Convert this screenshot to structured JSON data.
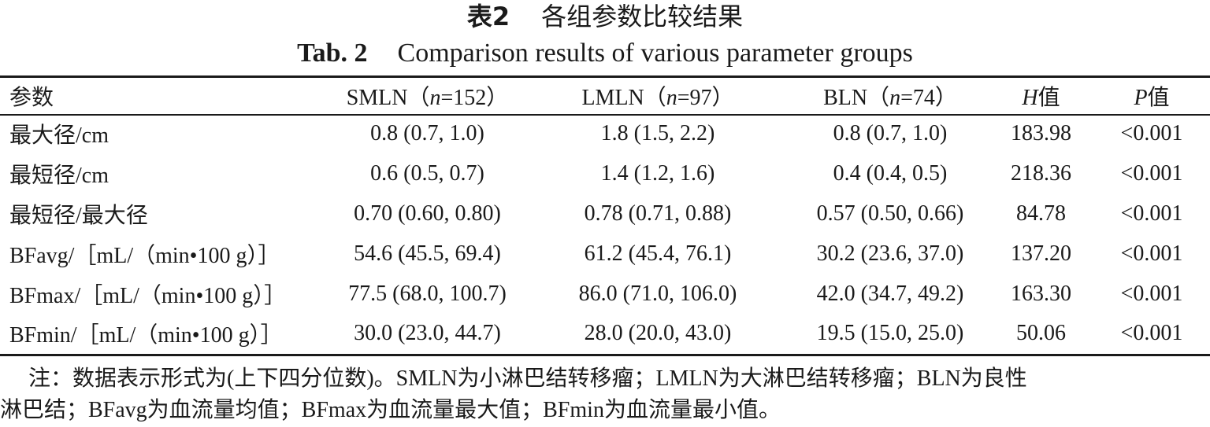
{
  "caption": {
    "cn_prefix": "表2",
    "cn_title": "各组参数比较结果",
    "en_prefix": "Tab. 2",
    "en_title": "Comparison results of various parameter groups"
  },
  "table": {
    "headers": {
      "param": "参数",
      "g1_name": "SMLN（",
      "g1_n": "n",
      "g1_count": "=152）",
      "g2_name": "LMLN（",
      "g2_n": "n",
      "g2_count": "=97）",
      "g3_name": "BLN（",
      "g3_n": "n",
      "g3_count": "=74）",
      "h_sym": "H",
      "h_suffix": "值",
      "p_sym": "P",
      "p_suffix": "值"
    },
    "rows": [
      {
        "param": "最大径/cm",
        "smln": "0.8 (0.7, 1.0)",
        "lmln": "1.8 (1.5, 2.2)",
        "bln": "0.8 (0.7, 1.0)",
        "h": "183.98",
        "p": "<0.001"
      },
      {
        "param": "最短径/cm",
        "smln": "0.6 (0.5, 0.7)",
        "lmln": "1.4 (1.2, 1.6)",
        "bln": "0.4 (0.4, 0.5)",
        "h": "218.36",
        "p": "<0.001"
      },
      {
        "param": "最短径/最大径",
        "smln": "0.70 (0.60, 0.80)",
        "lmln": "0.78 (0.71, 0.88)",
        "bln": "0.57 (0.50, 0.66)",
        "h": "84.78",
        "p": "<0.001"
      },
      {
        "param": "BFavg/［mL/（min•100 g）］",
        "smln": "54.6 (45.5, 69.4)",
        "lmln": "61.2 (45.4, 76.1)",
        "bln": "30.2 (23.6, 37.0)",
        "h": "137.20",
        "p": "<0.001"
      },
      {
        "param": "BFmax/［mL/（min•100 g）］",
        "smln": "77.5 (68.0, 100.7)",
        "lmln": "86.0 (71.0, 106.0)",
        "bln": "42.0 (34.7, 49.2)",
        "h": "163.30",
        "p": "<0.001"
      },
      {
        "param": "BFmin/［mL/（min•100 g）］",
        "smln": "30.0 (23.0, 44.7)",
        "lmln": "28.0 (20.0, 43.0)",
        "bln": "19.5 (15.0, 25.0)",
        "h": "50.06",
        "p": "<0.001"
      }
    ]
  },
  "note": {
    "line1": "注：数据表示形式为(上下四分位数)。SMLN为小淋巴结转移瘤；LMLN为大淋巴结转移瘤；BLN为良性",
    "line2": "淋巴结；BFavg为血流量均值；BFmax为血流量最大值；BFmin为血流量最小值。"
  }
}
